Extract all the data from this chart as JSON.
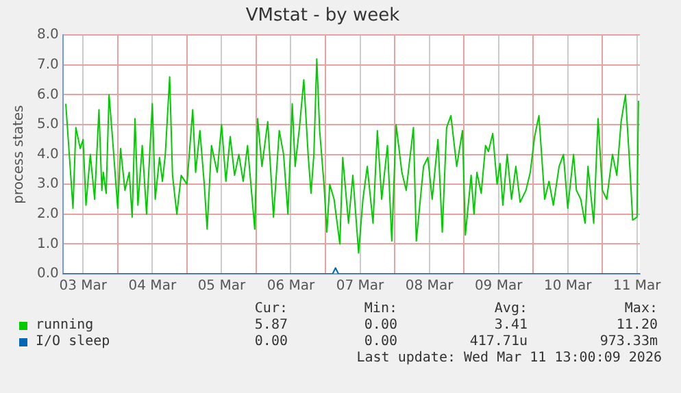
{
  "chart_data": {
    "type": "line",
    "title": "VMstat - by week",
    "ylabel": "process states",
    "xlim": [
      "2026-03-03T05:00",
      "2026-03-11T13:00"
    ],
    "xticks": [
      {
        "value": "2026-03-03T12:00",
        "label": "03 Mar"
      },
      {
        "value": "2026-03-04T00:00",
        "label": null
      },
      {
        "value": "2026-03-04T12:00",
        "label": "04 Mar"
      },
      {
        "value": "2026-03-05T00:00",
        "label": null
      },
      {
        "value": "2026-03-05T12:00",
        "label": "05 Mar"
      },
      {
        "value": "2026-03-06T00:00",
        "label": null
      },
      {
        "value": "2026-03-06T12:00",
        "label": "06 Mar"
      },
      {
        "value": "2026-03-07T00:00",
        "label": null
      },
      {
        "value": "2026-03-07T12:00",
        "label": "07 Mar"
      },
      {
        "value": "2026-03-08T00:00",
        "label": null
      },
      {
        "value": "2026-03-08T12:00",
        "label": "08 Mar"
      },
      {
        "value": "2026-03-09T00:00",
        "label": null
      },
      {
        "value": "2026-03-09T12:00",
        "label": "09 Mar"
      },
      {
        "value": "2026-03-10T00:00",
        "label": null
      },
      {
        "value": "2026-03-10T12:00",
        "label": "10 Mar"
      },
      {
        "value": "2026-03-11T00:00",
        "label": null
      },
      {
        "value": "2026-03-11T12:00",
        "label": "11 Mar"
      }
    ],
    "ylim": [
      0,
      8
    ],
    "yticks": [
      {
        "value": 0,
        "label": "0.0"
      },
      {
        "value": 1,
        "label": "1.0"
      },
      {
        "value": 2,
        "label": "2.0"
      },
      {
        "value": 3,
        "label": "3.0"
      },
      {
        "value": 4,
        "label": "4.0"
      },
      {
        "value": 5,
        "label": "5.0"
      },
      {
        "value": 6,
        "label": "6.0"
      },
      {
        "value": 7,
        "label": "7.0"
      },
      {
        "value": 8,
        "label": "8.0"
      }
    ],
    "grid": true,
    "legend": "bottom",
    "marker": "none",
    "series": [
      {
        "name": "running",
        "color": "#00cc00",
        "x": [
          "2026-03-03T06:00",
          "2026-03-03T07:30",
          "2026-03-03T08:30",
          "2026-03-03T09:30",
          "2026-03-03T11:00",
          "2026-03-03T12:00",
          "2026-03-03T13:00",
          "2026-03-03T14:30",
          "2026-03-03T16:00",
          "2026-03-03T17:30",
          "2026-03-03T18:30",
          "2026-03-03T19:00",
          "2026-03-03T20:00",
          "2026-03-03T21:00",
          "2026-03-03T22:00",
          "2026-03-04T00:00",
          "2026-03-04T01:00",
          "2026-03-04T02:30",
          "2026-03-04T04:00",
          "2026-03-04T05:00",
          "2026-03-04T06:00",
          "2026-03-04T07:00",
          "2026-03-04T08:30",
          "2026-03-04T10:00",
          "2026-03-04T12:00",
          "2026-03-04T13:00",
          "2026-03-04T14:30",
          "2026-03-04T15:30",
          "2026-03-04T16:30",
          "2026-03-04T18:00",
          "2026-03-04T19:00",
          "2026-03-04T20:30",
          "2026-03-04T22:00",
          "2026-03-05T00:00",
          "2026-03-05T02:00",
          "2026-03-05T03:00",
          "2026-03-05T04:30",
          "2026-03-05T06:00",
          "2026-03-05T07:00",
          "2026-03-05T08:30",
          "2026-03-05T10:30",
          "2026-03-05T12:00",
          "2026-03-05T13:30",
          "2026-03-05T15:00",
          "2026-03-05T16:30",
          "2026-03-05T18:00",
          "2026-03-05T19:30",
          "2026-03-05T21:00",
          "2026-03-05T23:30",
          "2026-03-06T00:30",
          "2026-03-06T02:00",
          "2026-03-06T04:00",
          "2026-03-06T06:00",
          "2026-03-06T08:00",
          "2026-03-06T09:30",
          "2026-03-06T11:00",
          "2026-03-06T12:30",
          "2026-03-06T13:30",
          "2026-03-06T15:00",
          "2026-03-06T16:30",
          "2026-03-06T18:00",
          "2026-03-06T19:00",
          "2026-03-06T20:00",
          "2026-03-06T21:00",
          "2026-03-06T22:00",
          "2026-03-06T23:30",
          "2026-03-07T00:30",
          "2026-03-07T01:30",
          "2026-03-07T03:00",
          "2026-03-07T05:00",
          "2026-03-07T06:00",
          "2026-03-07T08:00",
          "2026-03-07T09:30",
          "2026-03-07T11:30",
          "2026-03-07T13:00",
          "2026-03-07T14:30",
          "2026-03-07T16:30",
          "2026-03-07T18:00",
          "2026-03-07T19:30",
          "2026-03-07T21:30",
          "2026-03-07T23:00",
          "2026-03-08T00:30",
          "2026-03-08T02:30",
          "2026-03-08T04:00",
          "2026-03-08T06:30",
          "2026-03-08T07:30",
          "2026-03-08T10:00",
          "2026-03-08T11:30",
          "2026-03-08T13:00",
          "2026-03-08T15:00",
          "2026-03-08T16:30",
          "2026-03-08T18:00",
          "2026-03-08T19:30",
          "2026-03-08T21:30",
          "2026-03-08T23:30",
          "2026-03-09T00:30",
          "2026-03-09T02:30",
          "2026-03-09T03:30",
          "2026-03-09T04:30",
          "2026-03-09T06:00",
          "2026-03-09T07:30",
          "2026-03-09T08:30",
          "2026-03-09T10:00",
          "2026-03-09T11:30",
          "2026-03-09T12:30",
          "2026-03-09T13:30",
          "2026-03-09T15:00",
          "2026-03-09T16:30",
          "2026-03-09T18:00",
          "2026-03-09T19:30",
          "2026-03-09T21:30",
          "2026-03-09T23:00",
          "2026-03-10T00:30",
          "2026-03-10T02:00",
          "2026-03-10T04:00",
          "2026-03-10T05:30",
          "2026-03-10T07:00",
          "2026-03-10T09:00",
          "2026-03-10T10:30",
          "2026-03-10T12:00",
          "2026-03-10T14:00",
          "2026-03-10T15:00",
          "2026-03-10T16:30",
          "2026-03-10T18:00",
          "2026-03-10T19:00",
          "2026-03-10T21:00",
          "2026-03-10T22:30",
          "2026-03-11T00:00",
          "2026-03-11T01:30",
          "2026-03-11T03:30",
          "2026-03-11T05:00",
          "2026-03-11T06:30",
          "2026-03-11T08:00",
          "2026-03-11T09:30",
          "2026-03-11T10:30",
          "2026-03-11T12:00",
          "2026-03-11T12:30"
        ],
        "values": [
          5.7,
          3.6,
          2.2,
          4.9,
          4.2,
          4.5,
          2.3,
          4.0,
          2.5,
          5.5,
          2.8,
          3.4,
          2.7,
          6.0,
          4.8,
          2.2,
          4.2,
          2.8,
          3.4,
          1.9,
          5.2,
          2.3,
          4.3,
          2.0,
          5.7,
          2.5,
          3.9,
          3.1,
          4.0,
          6.6,
          3.3,
          2.0,
          3.3,
          3.0,
          5.5,
          3.4,
          4.8,
          3.0,
          1.5,
          4.3,
          3.4,
          5.0,
          3.1,
          4.6,
          3.3,
          4.0,
          3.1,
          4.3,
          1.5,
          5.2,
          3.6,
          5.1,
          1.9,
          4.8,
          4.0,
          2.0,
          5.7,
          3.6,
          4.9,
          6.5,
          4.0,
          2.7,
          4.0,
          7.2,
          4.8,
          3.0,
          1.4,
          3.0,
          2.5,
          1.0,
          3.9,
          1.7,
          3.3,
          0.7,
          2.5,
          3.6,
          1.7,
          4.8,
          2.5,
          4.3,
          1.1,
          5.0,
          3.4,
          2.8,
          4.9,
          1.1,
          3.6,
          3.9,
          2.5,
          4.5,
          1.4,
          4.9,
          5.3,
          3.6,
          4.8,
          1.3,
          3.3,
          2.0,
          3.4,
          2.7,
          4.3,
          4.1,
          4.7,
          3.0,
          3.7,
          2.3,
          4.0,
          2.5,
          3.6,
          2.4,
          2.8,
          3.4,
          4.6,
          5.3,
          2.5,
          3.1,
          2.3,
          3.6,
          4.0,
          2.2,
          4.0,
          2.8,
          2.5,
          1.7,
          3.6,
          1.7,
          5.2,
          2.8,
          2.5,
          4.0,
          3.3,
          5.1,
          6.0,
          3.6,
          1.8,
          1.9,
          5.8
        ]
      },
      {
        "name": "I/O sleep",
        "color": "#0066b3",
        "x": [
          "2026-03-03T05:00",
          "2026-03-07T02:30",
          "2026-03-07T03:30",
          "2026-03-07T04:30",
          "2026-03-11T13:00"
        ],
        "values": [
          0,
          0,
          0.2,
          0,
          0
        ]
      }
    ],
    "annotations": [
      "Cur:",
      "Min:",
      "Avg:",
      "Max:",
      "5.87",
      "0.00",
      "3.41",
      "11.20",
      "0.00",
      "0.00",
      "417.71u",
      "973.33m",
      "Last update: Wed Mar 11 13:00:09 2026"
    ]
  }
}
